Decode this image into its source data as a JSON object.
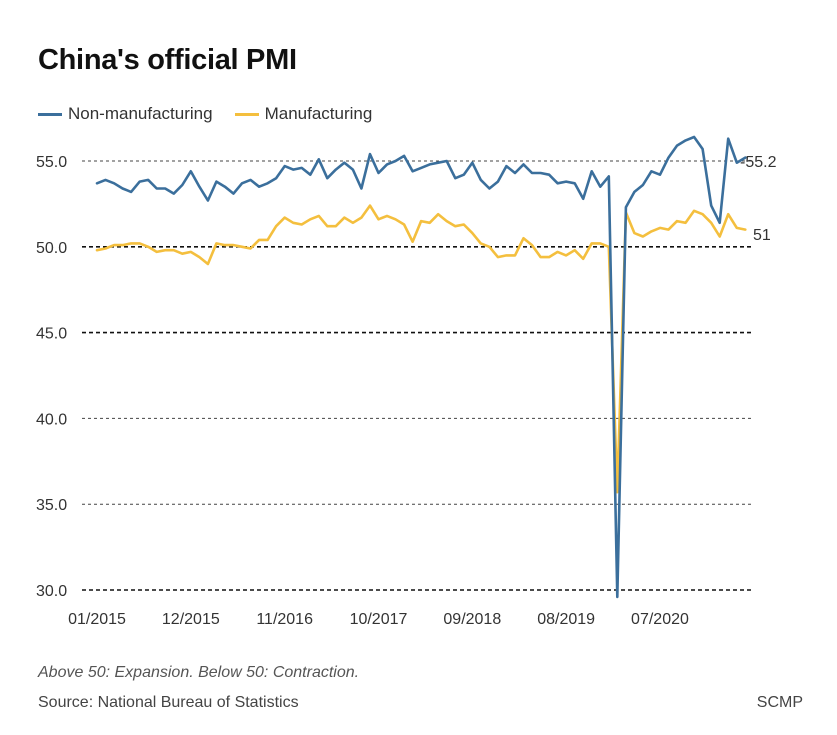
{
  "title": "China's official PMI",
  "legend": [
    {
      "label": "Non-manufacturing",
      "color": "#3b6f9c"
    },
    {
      "label": "Manufacturing",
      "color": "#f4bf3e"
    }
  ],
  "footer": {
    "note": "Above 50: Expansion. Below 50: Contraction.",
    "source": "Source: National Bureau of Statistics",
    "brand": "SCMP"
  },
  "chart_data": {
    "type": "line",
    "title": "China's official PMI",
    "xlabel": "",
    "ylabel": "",
    "ylim": [
      30,
      55.8
    ],
    "y_ticks": [
      "55.0",
      "50.0",
      "45.0",
      "40.0",
      "35.0",
      "30.0"
    ],
    "y_tick_values": [
      55,
      50,
      45,
      40,
      35,
      30
    ],
    "x_ticks": [
      "01/2015",
      "12/2015",
      "11/2016",
      "10/2017",
      "09/2018",
      "08/2019",
      "07/2020"
    ],
    "x_tick_months": [
      "2015-01",
      "2015-12",
      "2016-11",
      "2017-10",
      "2018-09",
      "2019-08",
      "2020-07"
    ],
    "x_range": [
      "2015-01",
      "2021-06"
    ],
    "grid": "dashed horizontal",
    "legend_position": "top-left",
    "end_labels": [
      "55.2",
      "51"
    ],
    "series": [
      {
        "name": "Non-manufacturing",
        "color": "#3b6f9c",
        "start": "2015-01",
        "values": [
          53.7,
          53.9,
          53.7,
          53.4,
          53.2,
          53.8,
          53.9,
          53.4,
          53.4,
          53.1,
          53.6,
          54.4,
          53.5,
          52.7,
          53.8,
          53.5,
          53.1,
          53.7,
          53.9,
          53.5,
          53.7,
          54.0,
          54.7,
          54.5,
          54.6,
          54.2,
          55.1,
          54.0,
          54.5,
          54.9,
          54.5,
          53.4,
          55.4,
          54.3,
          54.8,
          55.0,
          55.3,
          54.4,
          54.6,
          54.8,
          54.9,
          55.0,
          54.0,
          54.2,
          54.9,
          53.9,
          53.4,
          53.8,
          54.7,
          54.3,
          54.8,
          54.3,
          54.3,
          54.2,
          53.7,
          53.8,
          53.7,
          52.8,
          54.4,
          53.5,
          54.1,
          29.6,
          52.3,
          53.2,
          53.6,
          54.4,
          54.2,
          55.2,
          55.9,
          56.2,
          56.4,
          55.7,
          52.4,
          51.4,
          56.3,
          54.9,
          55.2
        ]
      },
      {
        "name": "Manufacturing",
        "color": "#f4bf3e",
        "start": "2015-01",
        "values": [
          49.8,
          49.9,
          50.1,
          50.1,
          50.2,
          50.2,
          50.0,
          49.7,
          49.8,
          49.8,
          49.6,
          49.7,
          49.4,
          49.0,
          50.2,
          50.1,
          50.1,
          50.0,
          49.9,
          50.4,
          50.4,
          51.2,
          51.7,
          51.4,
          51.3,
          51.6,
          51.8,
          51.2,
          51.2,
          51.7,
          51.4,
          51.7,
          52.4,
          51.6,
          51.8,
          51.6,
          51.3,
          50.3,
          51.5,
          51.4,
          51.9,
          51.5,
          51.2,
          51.3,
          50.8,
          50.2,
          50.0,
          49.4,
          49.5,
          49.5,
          50.5,
          50.1,
          49.4,
          49.4,
          49.7,
          49.5,
          49.8,
          49.3,
          50.2,
          50.2,
          50.0,
          35.7,
          52.0,
          50.8,
          50.6,
          50.9,
          51.1,
          51.0,
          51.5,
          51.4,
          52.1,
          51.9,
          51.4,
          50.6,
          51.9,
          51.1,
          51.0
        ]
      }
    ]
  }
}
